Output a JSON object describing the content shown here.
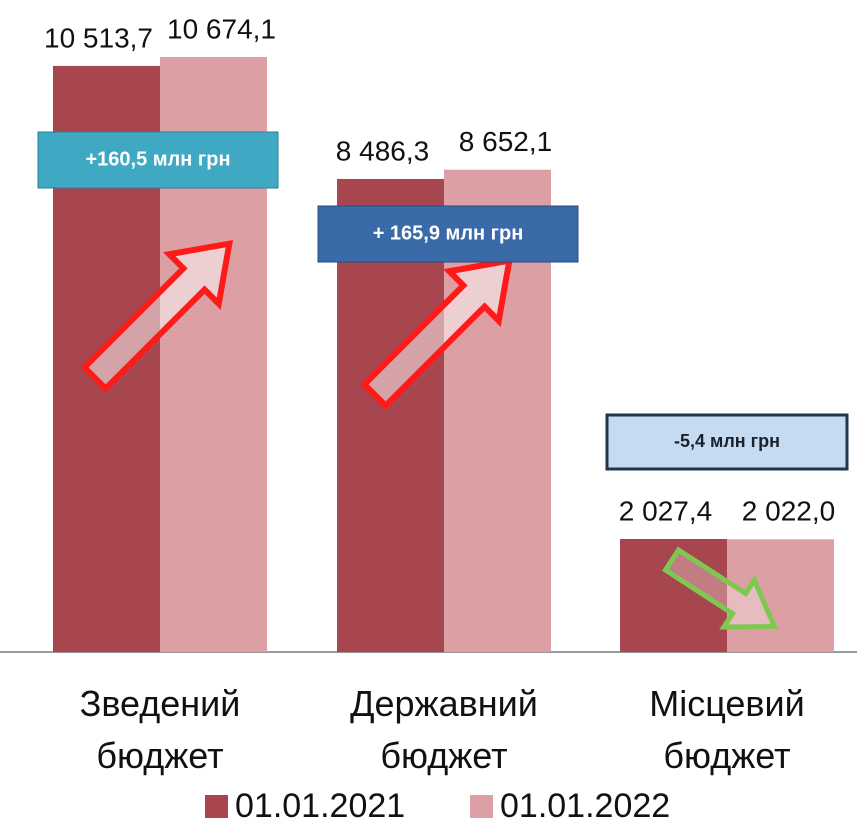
{
  "chart_data": {
    "type": "bar",
    "categories": [
      "Зведений бюджет",
      "Державний бюджет",
      "Місцевий бюджет"
    ],
    "series": [
      {
        "name": "01.01.2021",
        "color": "#a8464f",
        "values": [
          10513.7,
          8486.3,
          2027.4
        ],
        "value_labels": [
          "10 513,7",
          "8 486,3",
          "2 027,4"
        ]
      },
      {
        "name": "01.01.2022",
        "color": "#dc9fa3",
        "values": [
          10674.1,
          8652.1,
          2022.0
        ],
        "value_labels": [
          "10 674,1",
          "8 652,1",
          "2 022,0"
        ]
      }
    ],
    "annotations": [
      "+160,5 млн грн",
      "+ 165,9 млн грн",
      "-5,4 млн грн"
    ]
  }
}
